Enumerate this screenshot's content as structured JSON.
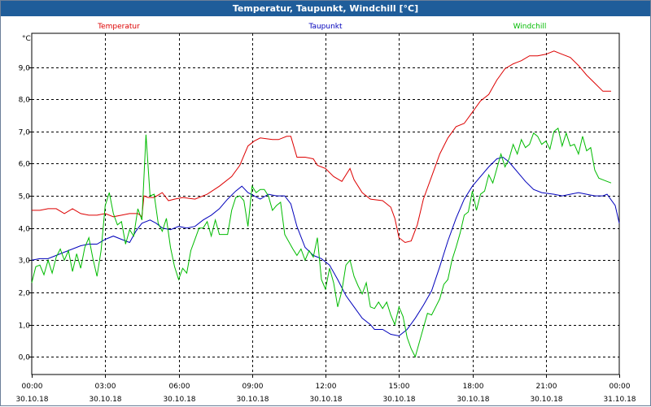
{
  "window": {
    "title": "Temperatur, Taupunkt, Windchill [°C]"
  },
  "chart_data": {
    "type": "line",
    "title": "Temperatur, Taupunkt, Windchill [°C]",
    "ylabel": "°C",
    "ylim": [
      -0.55,
      10.05
    ],
    "xlim": [
      0,
      1440
    ],
    "grid": true,
    "y_ticks": [
      {
        "value": 0.0,
        "label": "0,0"
      },
      {
        "value": 1.0,
        "label": "1,0"
      },
      {
        "value": 2.0,
        "label": "2,0"
      },
      {
        "value": 3.0,
        "label": "3,0"
      },
      {
        "value": 4.0,
        "label": "4,0"
      },
      {
        "value": 5.0,
        "label": "5,0"
      },
      {
        "value": 6.0,
        "label": "6,0"
      },
      {
        "value": 7.0,
        "label": "7,0"
      },
      {
        "value": 8.0,
        "label": "8,0"
      },
      {
        "value": 9.0,
        "label": "9,0"
      }
    ],
    "x_ticks": [
      {
        "minute": 0,
        "time": "00:00",
        "date": "30.10.18"
      },
      {
        "minute": 180,
        "time": "03:00",
        "date": "30.10.18"
      },
      {
        "minute": 360,
        "time": "06:00",
        "date": "30.10.18"
      },
      {
        "minute": 540,
        "time": "09:00",
        "date": "30.10.18"
      },
      {
        "minute": 720,
        "time": "12:00",
        "date": "30.10.18"
      },
      {
        "minute": 900,
        "time": "15:00",
        "date": "30.10.18"
      },
      {
        "minute": 1080,
        "time": "18:00",
        "date": "30.10.18"
      },
      {
        "minute": 1260,
        "time": "21:00",
        "date": "30.10.18"
      },
      {
        "minute": 1440,
        "time": "00:00",
        "date": "31.10.18"
      }
    ],
    "series": [
      {
        "name": "Temperatur",
        "color": "#dd0000",
        "legend_pos": "left",
        "points": [
          [
            0,
            4.55
          ],
          [
            20,
            4.55
          ],
          [
            40,
            4.6
          ],
          [
            60,
            4.6
          ],
          [
            80,
            4.45
          ],
          [
            100,
            4.6
          ],
          [
            120,
            4.45
          ],
          [
            140,
            4.4
          ],
          [
            160,
            4.4
          ],
          [
            180,
            4.45
          ],
          [
            200,
            4.35
          ],
          [
            220,
            4.4
          ],
          [
            240,
            4.45
          ],
          [
            260,
            4.45
          ],
          [
            270,
            4.35
          ],
          [
            275,
            5.0
          ],
          [
            285,
            4.95
          ],
          [
            300,
            4.95
          ],
          [
            320,
            5.1
          ],
          [
            335,
            4.85
          ],
          [
            350,
            4.9
          ],
          [
            370,
            4.95
          ],
          [
            400,
            4.9
          ],
          [
            430,
            5.05
          ],
          [
            460,
            5.3
          ],
          [
            490,
            5.6
          ],
          [
            510,
            5.95
          ],
          [
            530,
            6.55
          ],
          [
            545,
            6.7
          ],
          [
            560,
            6.8
          ],
          [
            590,
            6.75
          ],
          [
            605,
            6.75
          ],
          [
            625,
            6.85
          ],
          [
            635,
            6.85
          ],
          [
            650,
            6.2
          ],
          [
            670,
            6.2
          ],
          [
            690,
            6.15
          ],
          [
            700,
            5.95
          ],
          [
            720,
            5.85
          ],
          [
            740,
            5.6
          ],
          [
            760,
            5.45
          ],
          [
            780,
            5.85
          ],
          [
            790,
            5.5
          ],
          [
            810,
            5.1
          ],
          [
            830,
            4.9
          ],
          [
            860,
            4.85
          ],
          [
            880,
            4.65
          ],
          [
            890,
            4.3
          ],
          [
            900,
            3.7
          ],
          [
            915,
            3.55
          ],
          [
            930,
            3.6
          ],
          [
            945,
            4.1
          ],
          [
            960,
            4.9
          ],
          [
            980,
            5.6
          ],
          [
            1000,
            6.3
          ],
          [
            1020,
            6.8
          ],
          [
            1040,
            7.15
          ],
          [
            1060,
            7.25
          ],
          [
            1080,
            7.6
          ],
          [
            1100,
            7.95
          ],
          [
            1120,
            8.15
          ],
          [
            1140,
            8.6
          ],
          [
            1160,
            8.95
          ],
          [
            1180,
            9.1
          ],
          [
            1200,
            9.2
          ],
          [
            1220,
            9.35
          ],
          [
            1240,
            9.35
          ],
          [
            1260,
            9.4
          ],
          [
            1280,
            9.5
          ],
          [
            1300,
            9.4
          ],
          [
            1320,
            9.3
          ],
          [
            1340,
            9.05
          ],
          [
            1360,
            8.75
          ],
          [
            1380,
            8.5
          ],
          [
            1400,
            8.25
          ],
          [
            1420,
            8.25
          ]
        ]
      },
      {
        "name": "Taupunkt",
        "color": "#0000bb",
        "legend_pos": "center",
        "points": [
          [
            0,
            3.0
          ],
          [
            20,
            3.05
          ],
          [
            40,
            3.05
          ],
          [
            60,
            3.15
          ],
          [
            80,
            3.25
          ],
          [
            100,
            3.35
          ],
          [
            120,
            3.45
          ],
          [
            140,
            3.5
          ],
          [
            160,
            3.5
          ],
          [
            180,
            3.65
          ],
          [
            200,
            3.75
          ],
          [
            220,
            3.65
          ],
          [
            240,
            3.55
          ],
          [
            255,
            3.9
          ],
          [
            270,
            4.15
          ],
          [
            290,
            4.25
          ],
          [
            305,
            4.15
          ],
          [
            320,
            4.0
          ],
          [
            340,
            3.95
          ],
          [
            360,
            4.05
          ],
          [
            380,
            4.0
          ],
          [
            400,
            4.05
          ],
          [
            420,
            4.25
          ],
          [
            440,
            4.4
          ],
          [
            460,
            4.6
          ],
          [
            480,
            4.9
          ],
          [
            500,
            5.15
          ],
          [
            515,
            5.3
          ],
          [
            530,
            5.1
          ],
          [
            545,
            5.0
          ],
          [
            560,
            4.9
          ],
          [
            580,
            5.05
          ],
          [
            600,
            5.0
          ],
          [
            620,
            5.0
          ],
          [
            635,
            4.75
          ],
          [
            650,
            4.05
          ],
          [
            670,
            3.4
          ],
          [
            690,
            3.15
          ],
          [
            710,
            3.05
          ],
          [
            730,
            2.85
          ],
          [
            750,
            2.4
          ],
          [
            770,
            1.9
          ],
          [
            790,
            1.55
          ],
          [
            810,
            1.2
          ],
          [
            830,
            1.0
          ],
          [
            840,
            0.85
          ],
          [
            860,
            0.85
          ],
          [
            880,
            0.7
          ],
          [
            900,
            0.65
          ],
          [
            920,
            0.85
          ],
          [
            940,
            1.2
          ],
          [
            960,
            1.6
          ],
          [
            980,
            2.05
          ],
          [
            1000,
            2.8
          ],
          [
            1020,
            3.6
          ],
          [
            1040,
            4.3
          ],
          [
            1060,
            4.9
          ],
          [
            1080,
            5.3
          ],
          [
            1100,
            5.6
          ],
          [
            1120,
            5.9
          ],
          [
            1140,
            6.15
          ],
          [
            1155,
            6.2
          ],
          [
            1170,
            6.05
          ],
          [
            1190,
            5.75
          ],
          [
            1210,
            5.45
          ],
          [
            1230,
            5.2
          ],
          [
            1250,
            5.1
          ],
          [
            1280,
            5.05
          ],
          [
            1300,
            5.0
          ],
          [
            1320,
            5.05
          ],
          [
            1340,
            5.1
          ],
          [
            1360,
            5.05
          ],
          [
            1380,
            5.0
          ],
          [
            1400,
            5.0
          ],
          [
            1410,
            5.05
          ],
          [
            1430,
            4.7
          ],
          [
            1440,
            4.15
          ]
        ]
      },
      {
        "name": "Windchill",
        "color": "#00bb00",
        "legend_pos": "right",
        "points": [
          [
            0,
            2.3
          ],
          [
            10,
            2.8
          ],
          [
            20,
            2.85
          ],
          [
            30,
            2.55
          ],
          [
            40,
            3.0
          ],
          [
            50,
            2.6
          ],
          [
            60,
            3.1
          ],
          [
            70,
            3.35
          ],
          [
            80,
            3.0
          ],
          [
            90,
            3.3
          ],
          [
            100,
            2.65
          ],
          [
            110,
            3.2
          ],
          [
            120,
            2.75
          ],
          [
            130,
            3.4
          ],
          [
            140,
            3.7
          ],
          [
            150,
            3.05
          ],
          [
            160,
            2.5
          ],
          [
            170,
            3.3
          ],
          [
            180,
            4.7
          ],
          [
            190,
            5.1
          ],
          [
            200,
            4.45
          ],
          [
            210,
            4.1
          ],
          [
            220,
            4.2
          ],
          [
            230,
            3.5
          ],
          [
            240,
            3.95
          ],
          [
            250,
            3.75
          ],
          [
            260,
            4.6
          ],
          [
            270,
            4.25
          ],
          [
            280,
            6.9
          ],
          [
            290,
            5.0
          ],
          [
            300,
            5.05
          ],
          [
            310,
            4.15
          ],
          [
            320,
            3.9
          ],
          [
            330,
            4.3
          ],
          [
            340,
            3.4
          ],
          [
            350,
            2.8
          ],
          [
            360,
            2.4
          ],
          [
            370,
            2.75
          ],
          [
            380,
            2.6
          ],
          [
            390,
            3.3
          ],
          [
            400,
            3.65
          ],
          [
            410,
            4.0
          ],
          [
            420,
            4.0
          ],
          [
            430,
            4.2
          ],
          [
            440,
            3.75
          ],
          [
            450,
            4.25
          ],
          [
            460,
            3.8
          ],
          [
            480,
            3.8
          ],
          [
            490,
            4.55
          ],
          [
            500,
            4.95
          ],
          [
            510,
            5.0
          ],
          [
            520,
            4.85
          ],
          [
            530,
            4.05
          ],
          [
            540,
            5.3
          ],
          [
            550,
            5.1
          ],
          [
            560,
            5.2
          ],
          [
            570,
            5.2
          ],
          [
            580,
            5.0
          ],
          [
            590,
            4.55
          ],
          [
            600,
            4.7
          ],
          [
            610,
            4.8
          ],
          [
            620,
            3.8
          ],
          [
            640,
            3.35
          ],
          [
            650,
            3.15
          ],
          [
            660,
            3.35
          ],
          [
            670,
            3.0
          ],
          [
            680,
            3.3
          ],
          [
            690,
            3.1
          ],
          [
            700,
            3.7
          ],
          [
            710,
            2.4
          ],
          [
            720,
            2.1
          ],
          [
            730,
            2.75
          ],
          [
            740,
            2.3
          ],
          [
            750,
            1.55
          ],
          [
            760,
            2.05
          ],
          [
            770,
            2.85
          ],
          [
            780,
            3.0
          ],
          [
            790,
            2.5
          ],
          [
            800,
            2.2
          ],
          [
            810,
            1.95
          ],
          [
            820,
            2.3
          ],
          [
            830,
            1.55
          ],
          [
            840,
            1.5
          ],
          [
            850,
            1.7
          ],
          [
            860,
            1.5
          ],
          [
            870,
            1.7
          ],
          [
            880,
            1.3
          ],
          [
            890,
            1.0
          ],
          [
            900,
            1.55
          ],
          [
            910,
            1.25
          ],
          [
            920,
            0.6
          ],
          [
            930,
            0.25
          ],
          [
            940,
            0.0
          ],
          [
            950,
            0.45
          ],
          [
            960,
            0.9
          ],
          [
            970,
            1.35
          ],
          [
            980,
            1.3
          ],
          [
            990,
            1.55
          ],
          [
            1000,
            1.8
          ],
          [
            1010,
            2.25
          ],
          [
            1020,
            2.4
          ],
          [
            1030,
            3.0
          ],
          [
            1040,
            3.4
          ],
          [
            1050,
            3.85
          ],
          [
            1060,
            4.4
          ],
          [
            1070,
            4.5
          ],
          [
            1080,
            5.15
          ],
          [
            1090,
            4.55
          ],
          [
            1100,
            5.05
          ],
          [
            1110,
            5.15
          ],
          [
            1120,
            5.65
          ],
          [
            1130,
            5.4
          ],
          [
            1140,
            5.85
          ],
          [
            1150,
            6.3
          ],
          [
            1160,
            5.9
          ],
          [
            1170,
            6.15
          ],
          [
            1180,
            6.6
          ],
          [
            1190,
            6.3
          ],
          [
            1200,
            6.75
          ],
          [
            1210,
            6.5
          ],
          [
            1220,
            6.6
          ],
          [
            1230,
            6.95
          ],
          [
            1240,
            6.85
          ],
          [
            1250,
            6.6
          ],
          [
            1260,
            6.7
          ],
          [
            1270,
            6.45
          ],
          [
            1280,
            7.0
          ],
          [
            1290,
            7.1
          ],
          [
            1300,
            6.55
          ],
          [
            1310,
            6.95
          ],
          [
            1320,
            6.55
          ],
          [
            1330,
            6.6
          ],
          [
            1340,
            6.3
          ],
          [
            1350,
            6.85
          ],
          [
            1360,
            6.4
          ],
          [
            1370,
            6.5
          ],
          [
            1380,
            5.8
          ],
          [
            1390,
            5.55
          ],
          [
            1400,
            5.5
          ],
          [
            1410,
            5.45
          ],
          [
            1420,
            5.4
          ]
        ]
      }
    ]
  }
}
